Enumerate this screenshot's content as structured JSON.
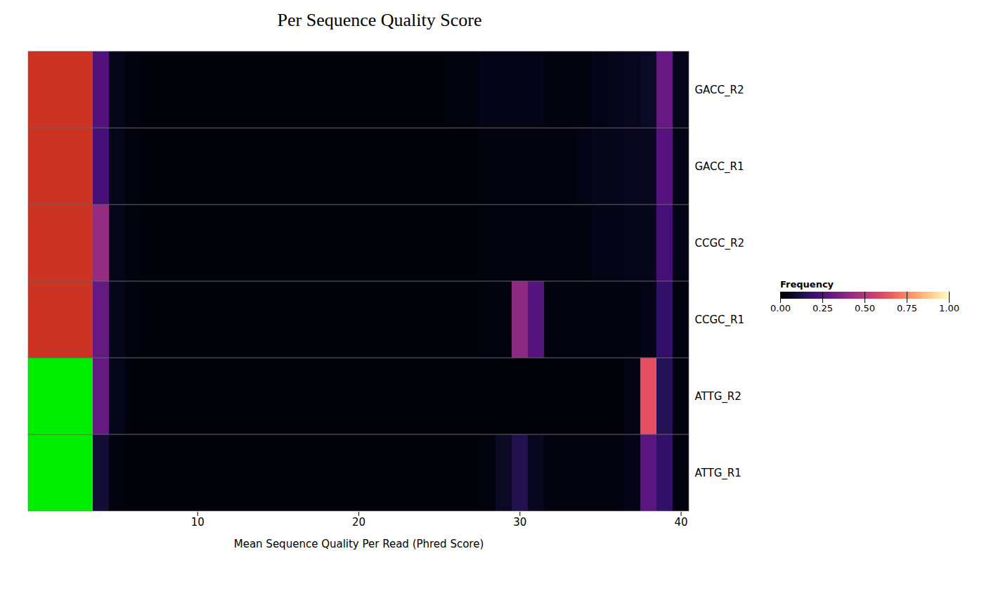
{
  "chart_data": {
    "type": "heatmap",
    "title": "Per Sequence Quality Score",
    "xlabel": "Mean Sequence Quality Per Read (Phred Score)",
    "categories": [
      "GACC_R2",
      "GACC_R1",
      "CCGC_R2",
      "CCGC_R1",
      "ATTG_R2",
      "ATTG_R1"
    ],
    "x": [
      0,
      1,
      2,
      3,
      4,
      5,
      6,
      7,
      8,
      9,
      10,
      11,
      12,
      13,
      14,
      15,
      16,
      17,
      18,
      19,
      20,
      21,
      22,
      23,
      24,
      25,
      26,
      27,
      28,
      29,
      30,
      31,
      32,
      33,
      34,
      35,
      36,
      37,
      38,
      39,
      40
    ],
    "xlim": [
      -0.5,
      40.5
    ],
    "xticks": [
      10,
      20,
      30,
      40
    ],
    "values": [
      [
        1.0,
        1.0,
        1.0,
        1.0,
        0.25,
        0.05,
        0.03,
        0.02,
        0.02,
        0.02,
        0.02,
        0.02,
        0.02,
        0.02,
        0.02,
        0.02,
        0.02,
        0.02,
        0.02,
        0.02,
        0.02,
        0.02,
        0.02,
        0.02,
        0.02,
        0.02,
        0.03,
        0.03,
        0.04,
        0.04,
        0.04,
        0.04,
        0.03,
        0.03,
        0.03,
        0.04,
        0.05,
        0.06,
        0.07,
        0.3,
        0.05
      ],
      [
        1.0,
        1.0,
        1.0,
        1.0,
        0.22,
        0.05,
        0.03,
        0.02,
        0.02,
        0.02,
        0.02,
        0.02,
        0.02,
        0.02,
        0.02,
        0.02,
        0.02,
        0.02,
        0.02,
        0.02,
        0.02,
        0.02,
        0.02,
        0.02,
        0.02,
        0.02,
        0.02,
        0.02,
        0.03,
        0.03,
        0.03,
        0.03,
        0.03,
        0.03,
        0.04,
        0.05,
        0.05,
        0.06,
        0.06,
        0.26,
        0.04
      ],
      [
        1.0,
        1.0,
        1.0,
        1.0,
        0.42,
        0.05,
        0.03,
        0.02,
        0.02,
        0.02,
        0.02,
        0.02,
        0.02,
        0.02,
        0.02,
        0.02,
        0.02,
        0.02,
        0.02,
        0.02,
        0.02,
        0.02,
        0.02,
        0.02,
        0.02,
        0.02,
        0.02,
        0.02,
        0.03,
        0.03,
        0.03,
        0.03,
        0.03,
        0.03,
        0.03,
        0.04,
        0.04,
        0.05,
        0.05,
        0.22,
        0.04
      ],
      [
        1.0,
        1.0,
        1.0,
        1.0,
        0.3,
        0.05,
        0.03,
        0.02,
        0.02,
        0.02,
        0.02,
        0.02,
        0.02,
        0.02,
        0.02,
        0.02,
        0.02,
        0.02,
        0.02,
        0.02,
        0.02,
        0.02,
        0.02,
        0.02,
        0.02,
        0.02,
        0.02,
        0.02,
        0.03,
        0.03,
        0.4,
        0.26,
        0.03,
        0.03,
        0.03,
        0.03,
        0.03,
        0.03,
        0.04,
        0.18,
        0.03
      ],
      [
        1.0,
        1.0,
        1.0,
        1.0,
        0.3,
        0.05,
        0.02,
        0.02,
        0.02,
        0.02,
        0.02,
        0.02,
        0.02,
        0.02,
        0.02,
        0.02,
        0.02,
        0.02,
        0.02,
        0.02,
        0.02,
        0.02,
        0.02,
        0.02,
        0.02,
        0.02,
        0.02,
        0.02,
        0.02,
        0.02,
        0.02,
        0.02,
        0.02,
        0.02,
        0.02,
        0.02,
        0.02,
        0.04,
        0.62,
        0.15,
        0.03
      ],
      [
        1.0,
        1.0,
        1.0,
        1.0,
        0.1,
        0.03,
        0.02,
        0.02,
        0.02,
        0.02,
        0.02,
        0.02,
        0.02,
        0.02,
        0.02,
        0.02,
        0.02,
        0.02,
        0.02,
        0.02,
        0.02,
        0.02,
        0.02,
        0.02,
        0.02,
        0.02,
        0.02,
        0.02,
        0.03,
        0.07,
        0.14,
        0.06,
        0.03,
        0.03,
        0.03,
        0.03,
        0.03,
        0.04,
        0.28,
        0.18,
        0.03
      ]
    ],
    "status_columns": 4,
    "status_colors": [
      "#cc3322",
      "#cc3322",
      "#cc3322",
      "#cc3322",
      "#00ee00",
      "#00ee00"
    ],
    "colorbar_label": "Frequency",
    "colorbar_range": [
      0.0,
      1.0
    ],
    "colorbar_ticks": [
      {
        "value": 0.0,
        "label": "0.00"
      },
      {
        "value": 0.25,
        "label": "0.25"
      },
      {
        "value": 0.5,
        "label": "0.50"
      },
      {
        "value": 0.75,
        "label": "0.75"
      },
      {
        "value": 1.0,
        "label": "1.00"
      }
    ],
    "grid": false
  }
}
